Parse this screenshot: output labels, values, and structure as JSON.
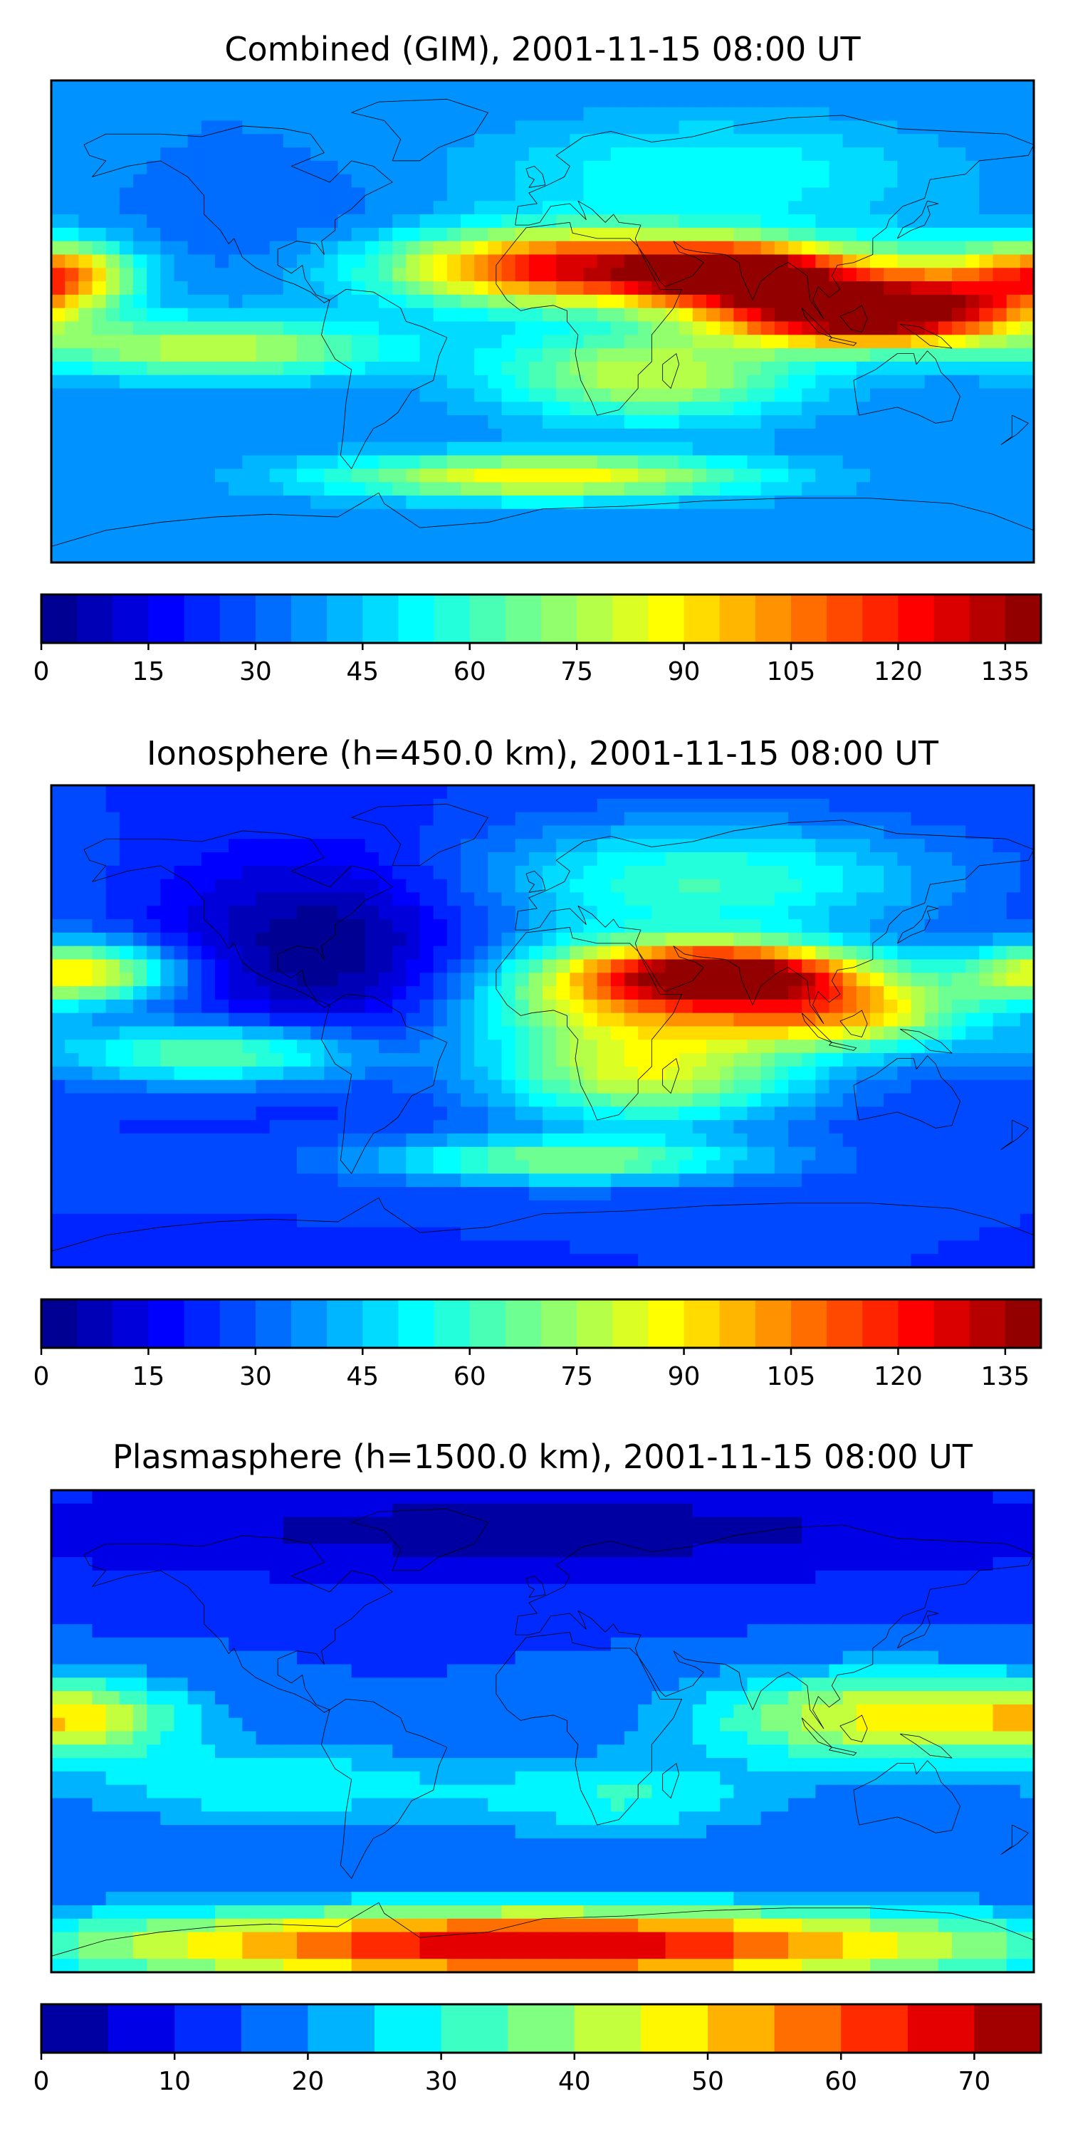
{
  "chart_data": [
    {
      "type": "heatmap",
      "title": "Combined (GIM), 2001-11-15 08:00 UT",
      "colorbar": {
        "min": 0,
        "max": 140,
        "step": 5,
        "ticks": [
          "0",
          "15",
          "30",
          "45",
          "60",
          "75",
          "90",
          "105",
          "120",
          "135"
        ]
      },
      "features": [
        {
          "lon": 5,
          "lat": 20,
          "value": 120,
          "sx": 45,
          "sy": 10
        },
        {
          "lon": 75,
          "lat": 18,
          "value": 135,
          "sx": 30,
          "sy": 8
        },
        {
          "lon": 110,
          "lat": 2,
          "value": 130,
          "sx": 35,
          "sy": 8
        },
        {
          "lon": 150,
          "lat": 10,
          "value": 95,
          "sx": 30,
          "sy": 12
        },
        {
          "lon": -175,
          "lat": 18,
          "value": 90,
          "sx": 18,
          "sy": 8
        },
        {
          "lon": -120,
          "lat": -10,
          "value": 80,
          "sx": 45,
          "sy": 8
        },
        {
          "lon": 40,
          "lat": -20,
          "value": 80,
          "sx": 40,
          "sy": 12
        },
        {
          "lon": 0,
          "lat": -58,
          "value": 90,
          "sx": 55,
          "sy": 6
        },
        {
          "lon": 60,
          "lat": 55,
          "value": 55,
          "sx": 60,
          "sy": 15
        },
        {
          "lon": -90,
          "lat": 35,
          "value": 30,
          "sx": 40,
          "sy": 15
        }
      ],
      "base": 35
    },
    {
      "type": "heatmap",
      "title": "Ionosphere  (h=450.0 km), 2001-11-15 08:00 UT",
      "colorbar": {
        "min": 0,
        "max": 140,
        "step": 5,
        "ticks": [
          "0",
          "15",
          "30",
          "45",
          "60",
          "75",
          "90",
          "105",
          "120",
          "135"
        ]
      },
      "features": [
        {
          "lon": 70,
          "lat": 20,
          "value": 115,
          "sx": 35,
          "sy": 8
        },
        {
          "lon": 110,
          "lat": 5,
          "value": 90,
          "sx": 35,
          "sy": 10
        },
        {
          "lon": 30,
          "lat": 10,
          "value": 85,
          "sx": 40,
          "sy": 15
        },
        {
          "lon": -170,
          "lat": 20,
          "value": 90,
          "sx": 25,
          "sy": 8
        },
        {
          "lon": -120,
          "lat": -10,
          "value": 70,
          "sx": 40,
          "sy": 8
        },
        {
          "lon": 60,
          "lat": 55,
          "value": 60,
          "sx": 60,
          "sy": 15
        },
        {
          "lon": 40,
          "lat": -20,
          "value": 75,
          "sx": 40,
          "sy": 12
        },
        {
          "lon": 10,
          "lat": -50,
          "value": 70,
          "sx": 50,
          "sy": 6
        },
        {
          "lon": -80,
          "lat": 30,
          "value": 0,
          "sx": 40,
          "sy": 25
        }
      ],
      "base": 25
    },
    {
      "type": "heatmap",
      "title": "Plasmasphere (h=1500.0 km), 2001-11-15 08:00 UT",
      "colorbar": {
        "min": 0,
        "max": 75,
        "step": 5,
        "ticks": [
          "0",
          "10",
          "20",
          "30",
          "40",
          "50",
          "60",
          "70"
        ]
      },
      "features": [
        {
          "lon": 0,
          "lat": -80,
          "value": 70,
          "sx": 120,
          "sy": 10
        },
        {
          "lon": 120,
          "lat": 5,
          "value": 45,
          "sx": 45,
          "sy": 12
        },
        {
          "lon": -170,
          "lat": 5,
          "value": 40,
          "sx": 30,
          "sy": 10
        },
        {
          "lon": -100,
          "lat": -20,
          "value": 30,
          "sx": 50,
          "sy": 10
        },
        {
          "lon": 30,
          "lat": -25,
          "value": 30,
          "sx": 40,
          "sy": 10
        },
        {
          "lon": 0,
          "lat": 75,
          "value": 3,
          "sx": 160,
          "sy": 15
        }
      ],
      "base": 15
    }
  ]
}
